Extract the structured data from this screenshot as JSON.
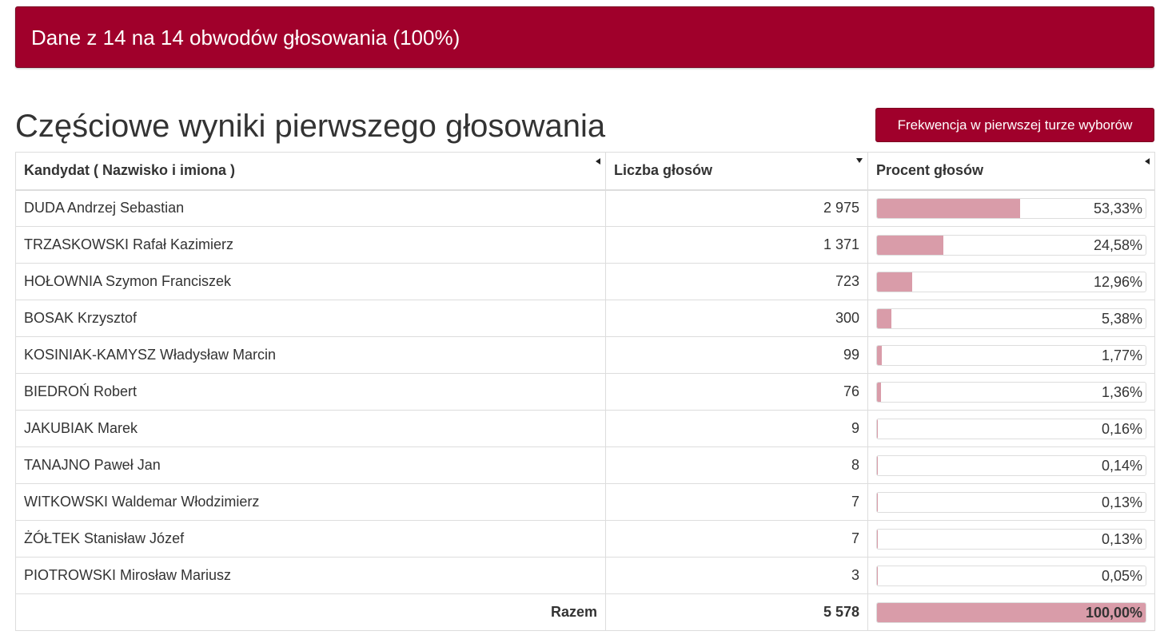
{
  "banner": {
    "text": "Dane z 14 na 14 obwodów głosowania (100%)"
  },
  "heading": {
    "title": "Częściowe wyniki pierwszego głosowania"
  },
  "turnout_button": {
    "label": "Frekwencja w pierwszej turze wyborów"
  },
  "table": {
    "headers": {
      "candidate": "Kandydat ( Nazwisko i imiona )",
      "votes": "Liczba głosów",
      "percent": "Procent głosów"
    },
    "rows": [
      {
        "name": "DUDA Andrzej Sebastian",
        "votes": "2 975",
        "percent": "53,33%",
        "pct": 53.33
      },
      {
        "name": "TRZASKOWSKI Rafał Kazimierz",
        "votes": "1 371",
        "percent": "24,58%",
        "pct": 24.58
      },
      {
        "name": "HOŁOWNIA Szymon Franciszek",
        "votes": "723",
        "percent": "12,96%",
        "pct": 12.96
      },
      {
        "name": "BOSAK Krzysztof",
        "votes": "300",
        "percent": "5,38%",
        "pct": 5.38
      },
      {
        "name": "KOSINIAK-KAMYSZ Władysław Marcin",
        "votes": "99",
        "percent": "1,77%",
        "pct": 1.77
      },
      {
        "name": "BIEDROŃ Robert",
        "votes": "76",
        "percent": "1,36%",
        "pct": 1.36
      },
      {
        "name": "JAKUBIAK Marek",
        "votes": "9",
        "percent": "0,16%",
        "pct": 0.16
      },
      {
        "name": "TANAJNO Paweł Jan",
        "votes": "8",
        "percent": "0,14%",
        "pct": 0.14
      },
      {
        "name": "WITKOWSKI Waldemar Włodzimierz",
        "votes": "7",
        "percent": "0,13%",
        "pct": 0.13
      },
      {
        "name": "ŻÓŁTEK Stanisław Józef",
        "votes": "7",
        "percent": "0,13%",
        "pct": 0.13
      },
      {
        "name": "PIOTROWSKI Mirosław Mariusz",
        "votes": "3",
        "percent": "0,05%",
        "pct": 0.05
      }
    ],
    "total": {
      "label": "Razem",
      "votes": "5 578",
      "percent": "100,00%",
      "pct": 100
    }
  },
  "colors": {
    "accent": "#a0002b",
    "bar_fill": "#d99ca9"
  }
}
